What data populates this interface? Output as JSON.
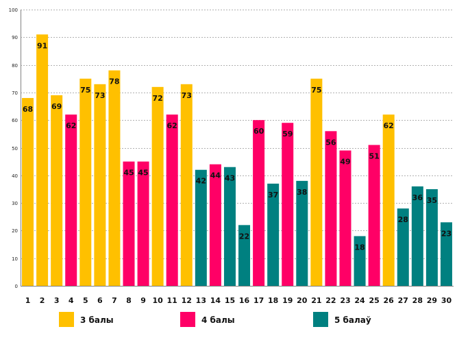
{
  "chart_data": {
    "type": "bar",
    "title": "",
    "xlabel": "",
    "ylabel": "",
    "ylim": [
      0,
      100
    ],
    "yticks": [
      0,
      10,
      20,
      30,
      40,
      50,
      60,
      70,
      80,
      90,
      100
    ],
    "grid": true,
    "categories": [
      "1",
      "2",
      "3",
      "4",
      "5",
      "6",
      "7",
      "8",
      "9",
      "10",
      "11",
      "12",
      "13",
      "14",
      "15",
      "16",
      "17",
      "18",
      "19",
      "20",
      "21",
      "22",
      "23",
      "24",
      "25",
      "26",
      "27",
      "28",
      "29",
      "30"
    ],
    "values": [
      68,
      91,
      69,
      62,
      75,
      73,
      78,
      45,
      45,
      72,
      62,
      73,
      42,
      44,
      43,
      22,
      60,
      37,
      59,
      38,
      75,
      56,
      49,
      18,
      51,
      62,
      28,
      36,
      35,
      23
    ],
    "groups": [
      3,
      3,
      3,
      4,
      3,
      3,
      3,
      4,
      4,
      3,
      4,
      3,
      5,
      4,
      5,
      5,
      4,
      5,
      4,
      5,
      3,
      4,
      4,
      5,
      4,
      3,
      5,
      5,
      5,
      5
    ],
    "legend": [
      {
        "key": 3,
        "label": "3 балы",
        "color": "#FFC000"
      },
      {
        "key": 4,
        "label": "4 балы",
        "color": "#FF0066"
      },
      {
        "key": 5,
        "label": "5 балаў",
        "color": "#008080"
      }
    ],
    "legend_position": "bottom"
  }
}
